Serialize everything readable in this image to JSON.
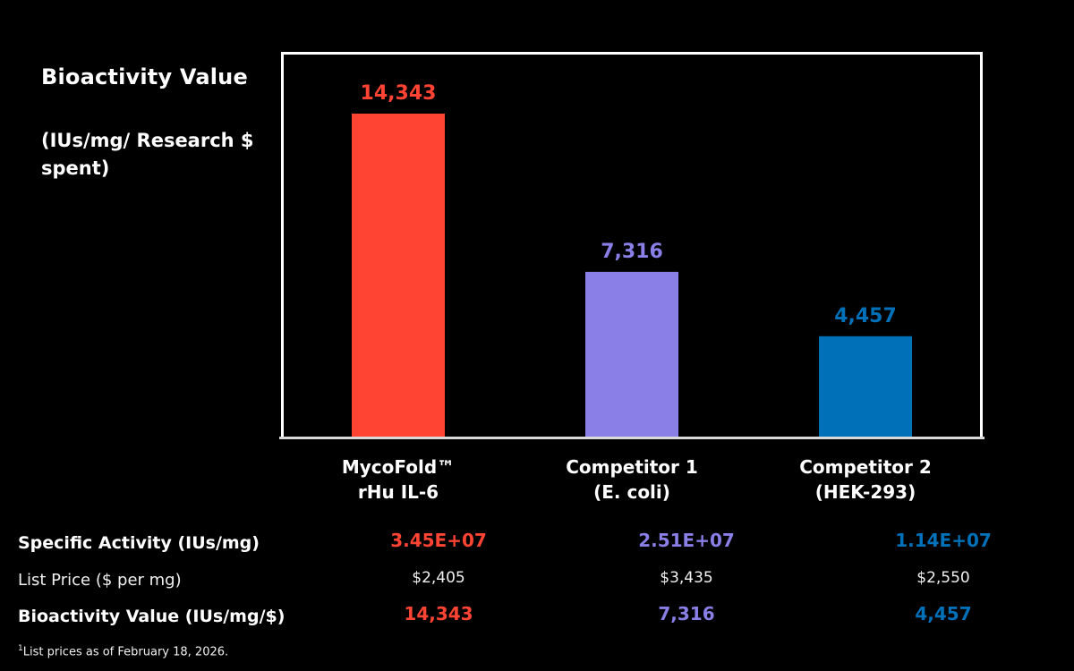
{
  "chart_data": {
    "type": "bar",
    "title": "Bioactivity Value",
    "ylabel": "(IUs/mg/ Research $ spent)",
    "xlabel": "",
    "categories": [
      "MycoFold™\nrHu IL-6",
      "Competitor 1\n(E. coli)",
      "Competitor 2\n(HEK-293)"
    ],
    "category_lines": [
      [
        "MycoFold™",
        "rHu IL-6"
      ],
      [
        "Competitor 1",
        "(E. coli)"
      ],
      [
        "Competitor 2",
        "(HEK-293)"
      ]
    ],
    "values": [
      14343,
      7316,
      4457
    ],
    "data_labels": [
      "14,343",
      "7,316",
      "4,457"
    ],
    "colors": [
      "#ff4433",
      "#8a7fe6",
      "#0070b8"
    ],
    "ylim": [
      0,
      16500
    ],
    "grid": false,
    "legend": "none"
  },
  "table": {
    "rows": [
      {
        "label": "Specific Activity (IUs/mg)",
        "style": "bold",
        "values": [
          "3.45E+07",
          "2.51E+07",
          "1.14E+07"
        ]
      },
      {
        "label": "List Price ($ per mg)",
        "style": "normal",
        "values": [
          "$2,405",
          "$3,435",
          "$2,550"
        ]
      },
      {
        "label": "Bioactivity Value (IUs/mg/$)",
        "style": "bold",
        "values": [
          "14,343",
          "7,316",
          "4,457"
        ]
      }
    ]
  },
  "footnote": {
    "marker": "1",
    "text": "List prices as of February 18, 2026."
  }
}
